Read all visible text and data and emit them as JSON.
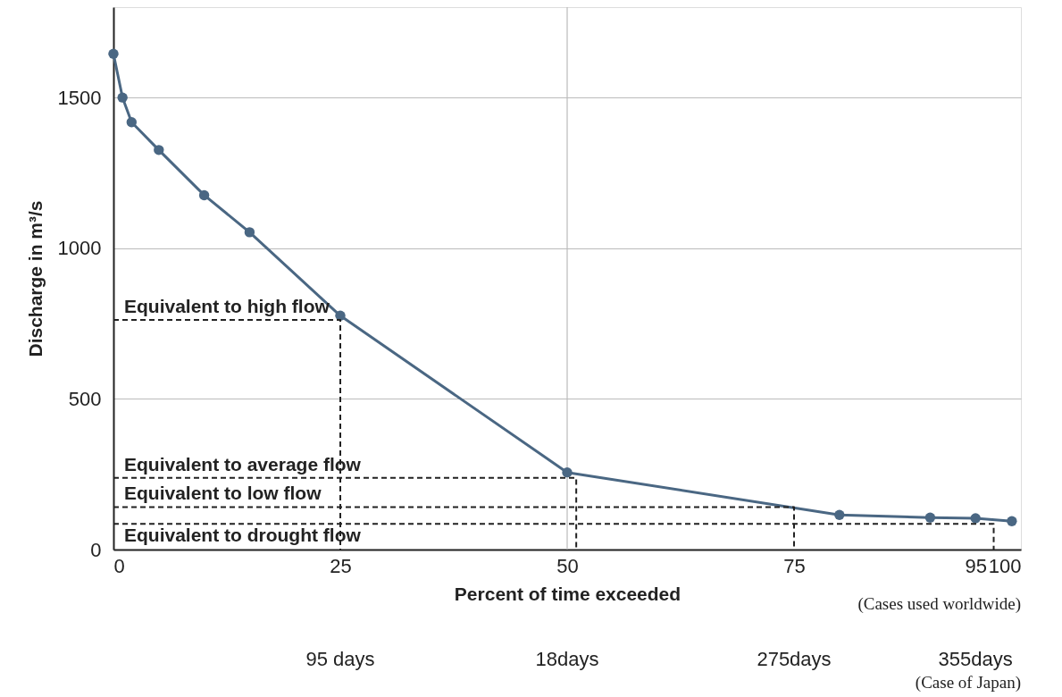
{
  "chart_data": {
    "type": "line",
    "xlabel": "Percent of time exceeded",
    "ylabel": "Discharge in m³/s",
    "xlim": [
      0,
      100
    ],
    "xticks": [
      0,
      25,
      50,
      75,
      95,
      100
    ],
    "ylim": [
      0,
      1800
    ],
    "yticks": [
      0,
      500,
      1000,
      1500
    ],
    "grid": "y",
    "series": [
      {
        "color": "#4a6783",
        "marker": "circle",
        "line_style": "solid",
        "x": [
          0,
          1,
          2,
          5,
          10,
          15,
          25,
          50,
          80,
          90,
          95,
          99
        ],
        "values": [
          1645,
          1500,
          1418,
          1326,
          1176,
          1053,
          776,
          256,
          115,
          106,
          104,
          94
        ]
      },
      {
        "color": "#222222",
        "marker": "none",
        "line_style": "dashed",
        "x": [
          0,
          25,
          25
        ],
        "values": [
          762,
          762,
          0
        ]
      },
      {
        "color": "#222222",
        "marker": "none",
        "line_style": "dashed",
        "x": [
          0,
          51,
          51
        ],
        "values": [
          238,
          238,
          0
        ]
      },
      {
        "color": "#222222",
        "marker": "none",
        "line_style": "dashed",
        "x": [
          0,
          75,
          75
        ],
        "values": [
          141,
          141,
          0
        ]
      },
      {
        "color": "#222222",
        "marker": "none",
        "line_style": "dashed",
        "x": [
          0,
          97,
          97
        ],
        "values": [
          85,
          85,
          0
        ]
      }
    ],
    "ref_lines": [
      {
        "axis": "x",
        "value": 50,
        "color": "#bbbbbb"
      }
    ],
    "annotations": [
      {
        "text": "Equivalent to high flow",
        "y": 762
      },
      {
        "text": "Equivalent to average flow",
        "y": 238
      },
      {
        "text": "Equivalent to low flow",
        "y": 141
      },
      {
        "text": "Equivalent to drought flow",
        "y": 85
      },
      "(Cases used worldwide)",
      "95 days",
      "18days",
      "275days",
      "355days",
      "(Case of Japan)"
    ]
  }
}
